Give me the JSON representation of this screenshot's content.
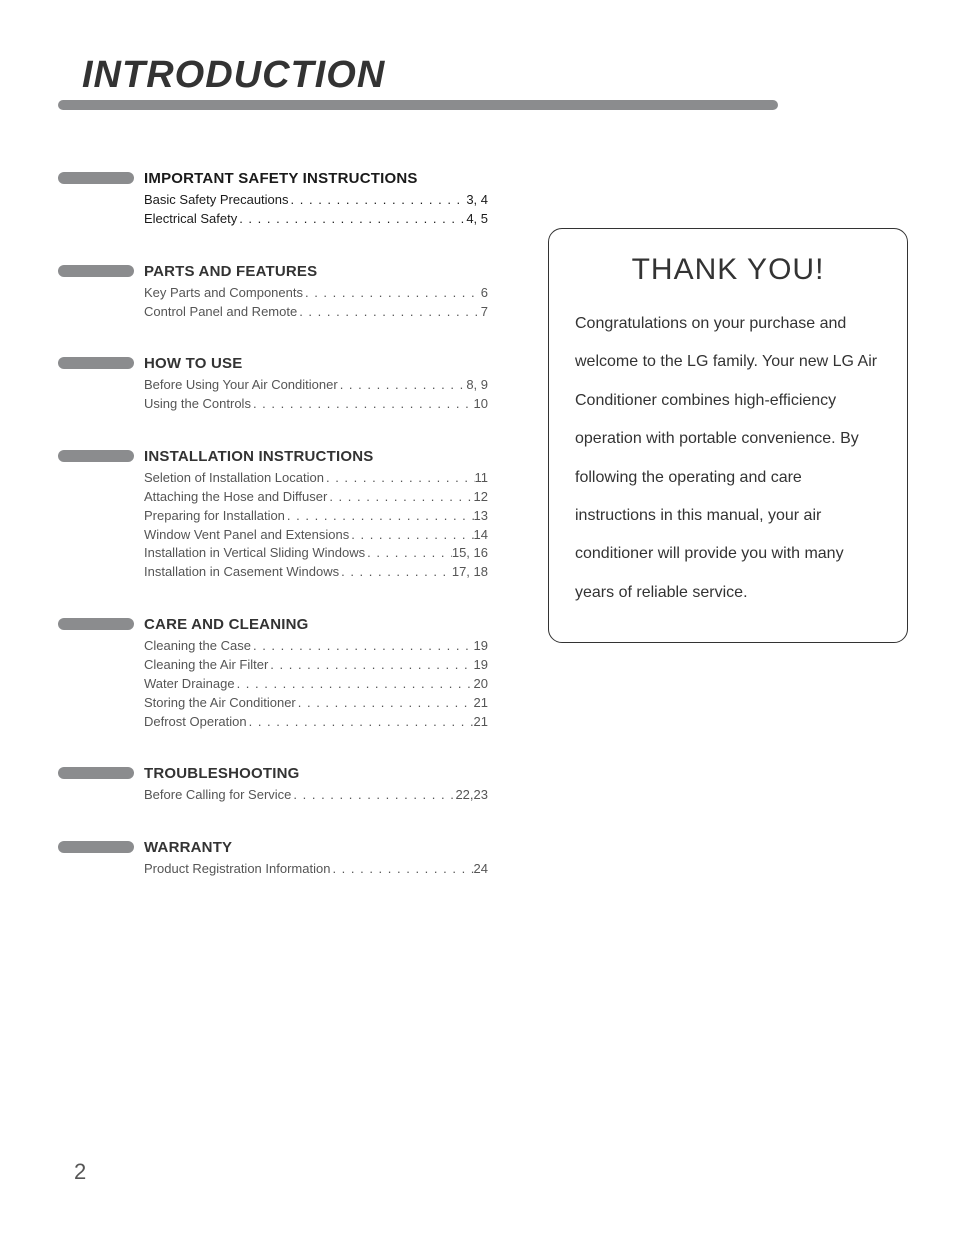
{
  "page": {
    "title": "INTRODUCTION",
    "number": "2",
    "colors": {
      "rule": "#8b8c8e",
      "text": "#333333",
      "muted": "#555555",
      "background": "#ffffff"
    }
  },
  "toc": [
    {
      "heading": "IMPORTANT SAFETY INSTRUCTIONS",
      "style": "safety",
      "items": [
        {
          "label": "Basic Safety Precautions",
          "page": "3, 4"
        },
        {
          "label": "Electrical Safety",
          "page": "4, 5"
        }
      ]
    },
    {
      "heading": "PARTS AND FEATURES",
      "items": [
        {
          "label": "Key Parts and Components",
          "page": "6"
        },
        {
          "label": "Control Panel and Remote",
          "page": "7"
        }
      ]
    },
    {
      "heading": "HOW TO USE",
      "items": [
        {
          "label": "Before Using Your Air Conditioner",
          "page": "8, 9"
        },
        {
          "label": "Using the Controls",
          "page": "10"
        }
      ]
    },
    {
      "heading": "INSTALLATION INSTRUCTIONS",
      "items": [
        {
          "label": "Seletion of Installation Location",
          "page": "11"
        },
        {
          "label": "Attaching the Hose and Diffuser",
          "page": "12"
        },
        {
          "label": "Preparing for Installation",
          "page": "13"
        },
        {
          "label": "Window Vent Panel and Extensions",
          "page": "14"
        },
        {
          "label": "Installation in Vertical Sliding Windows",
          "page": "15, 16"
        },
        {
          "label": "Installation in Casement Windows",
          "page": "17, 18"
        }
      ]
    },
    {
      "heading": "CARE AND CLEANING",
      "items": [
        {
          "label": "Cleaning the Case",
          "page": "19"
        },
        {
          "label": "Cleaning the Air Filter",
          "page": "19"
        },
        {
          "label": "Water Drainage",
          "page": "20"
        },
        {
          "label": "Storing the Air Conditioner",
          "page": "21"
        },
        {
          "label": "Defrost Operation",
          "page": "21"
        }
      ]
    },
    {
      "heading": "TROUBLESHOOTING",
      "items": [
        {
          "label": "Before Calling for Service",
          "page": "22,23"
        }
      ]
    },
    {
      "heading": "WARRANTY",
      "items": [
        {
          "label": "Product Registration Information",
          "page": "24"
        }
      ]
    }
  ],
  "thankyou": {
    "title": "THANK YOU!",
    "body": "Congratulations on your purchase and welcome to the LG family. Your new LG Air Conditioner combines high-efficiency operation with portable convenience. By following the operating and care instructions in this manual, your air conditioner will provide you with many years of reliable service."
  }
}
